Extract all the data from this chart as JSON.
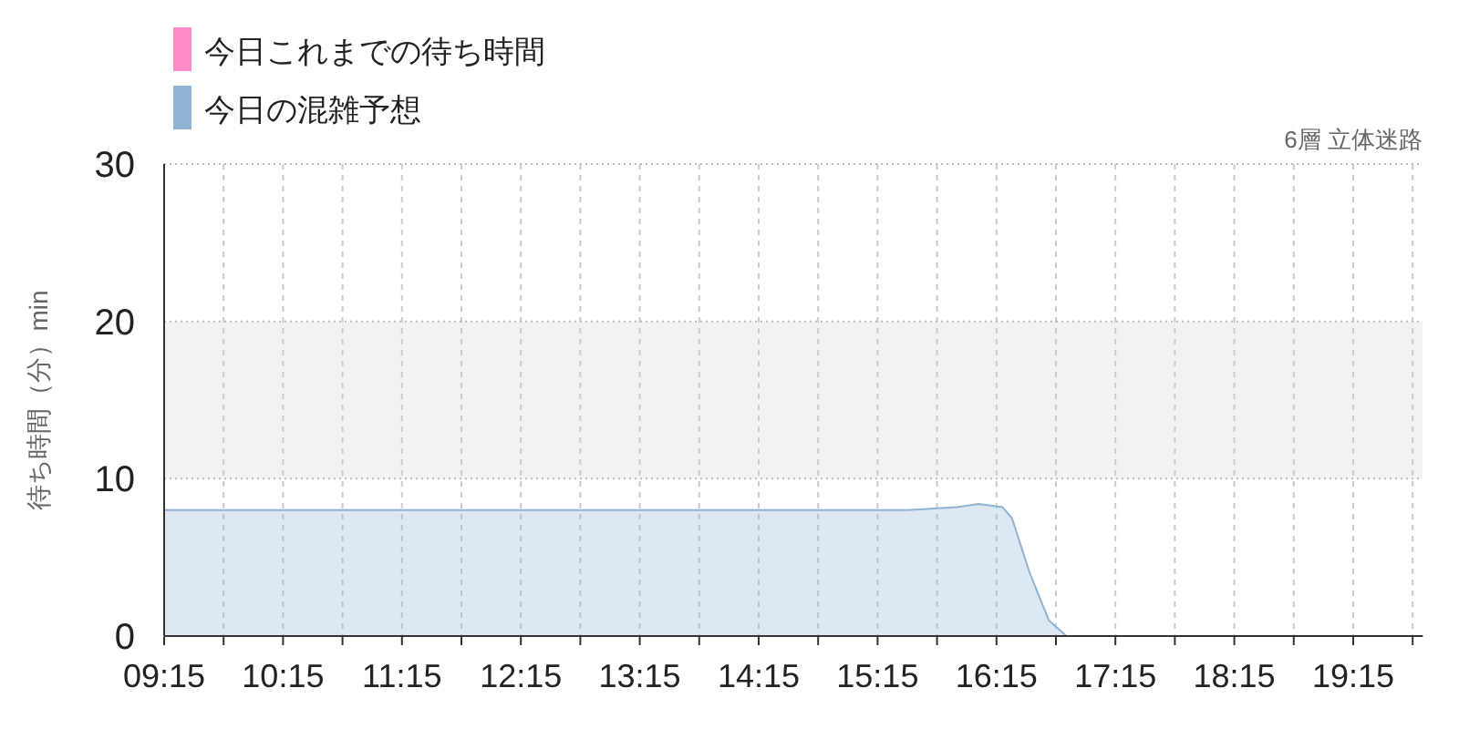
{
  "chart_data": {
    "type": "area",
    "subtitle": "6層 立体迷路",
    "ylabel": "待ち時間（分）min",
    "x": [
      9.25,
      15.5,
      15.92,
      16.1,
      16.3,
      16.38,
      16.53,
      16.69,
      16.84,
      19.833
    ],
    "series": [
      {
        "name": "今日これまでの待ち時間",
        "color": "#ff8cc8",
        "values": [
          null,
          null,
          null,
          null,
          null,
          null,
          null,
          null,
          null,
          null
        ]
      },
      {
        "name": "今日の混雑予想",
        "color": "#8fb3d3",
        "values": [
          8,
          8,
          8.2,
          8.4,
          8.2,
          7.5,
          4,
          1,
          0,
          0
        ]
      }
    ],
    "xlim": [
      9.25,
      19.833
    ],
    "xticks": [
      {
        "value": 9.25,
        "label": "09:15"
      },
      {
        "value": 9.75,
        "label": null
      },
      {
        "value": 10.25,
        "label": "10:15"
      },
      {
        "value": 10.75,
        "label": null
      },
      {
        "value": 11.25,
        "label": "11:15"
      },
      {
        "value": 11.75,
        "label": null
      },
      {
        "value": 12.25,
        "label": "12:15"
      },
      {
        "value": 12.75,
        "label": null
      },
      {
        "value": 13.25,
        "label": "13:15"
      },
      {
        "value": 13.75,
        "label": null
      },
      {
        "value": 14.25,
        "label": "14:15"
      },
      {
        "value": 14.75,
        "label": null
      },
      {
        "value": 15.25,
        "label": "15:15"
      },
      {
        "value": 15.75,
        "label": null
      },
      {
        "value": 16.25,
        "label": "16:15"
      },
      {
        "value": 16.75,
        "label": null
      },
      {
        "value": 17.25,
        "label": "17:15"
      },
      {
        "value": 17.75,
        "label": null
      },
      {
        "value": 18.25,
        "label": "18:15"
      },
      {
        "value": 18.75,
        "label": null
      },
      {
        "value": 19.25,
        "label": "19:15"
      },
      {
        "value": 19.75,
        "label": null
      }
    ],
    "ylim": [
      0,
      30
    ],
    "yticks": [
      0,
      10,
      20,
      30
    ],
    "bands": [
      {
        "axis": "y",
        "from": 10,
        "to": 20,
        "color": "#f2f2f2"
      }
    ],
    "grid": true,
    "legend": "top left"
  }
}
